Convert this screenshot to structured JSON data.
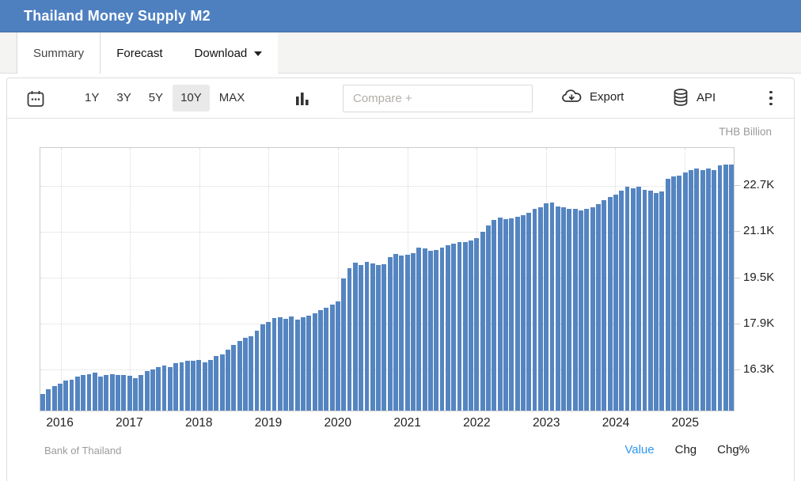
{
  "header": {
    "title": "Thailand Money Supply M2"
  },
  "tabs": [
    {
      "label": "Summary",
      "active": true
    },
    {
      "label": "Forecast",
      "active": false
    },
    {
      "label": "Download",
      "active": false,
      "caret": true
    }
  ],
  "toolbar": {
    "ranges": [
      "1Y",
      "3Y",
      "5Y",
      "10Y",
      "MAX"
    ],
    "active_range": "10Y",
    "compare_placeholder": "Compare +",
    "export_label": "Export",
    "api_label": "API",
    "icons": [
      "calendar-icon",
      "bar-chart-type-icon",
      "cloud-download-icon",
      "database-icon",
      "kebab-menu-icon"
    ]
  },
  "colors": {
    "header_bg": "#4e80c0",
    "bar": "#5585c1",
    "link_active": "#2e97f0",
    "range_active_bg": "#e9e9e9"
  },
  "footer": {
    "source": "Bank of Thailand",
    "links": [
      {
        "label": "Value",
        "active": true
      },
      {
        "label": "Chg",
        "active": false
      },
      {
        "label": "Chg%",
        "active": false
      }
    ]
  },
  "chart_data": {
    "type": "bar",
    "title": "Thailand Money Supply M2",
    "unit_label": "THB Billion",
    "source": "Bank of Thailand",
    "grid": "dotted",
    "legend": "none",
    "ylim": [
      14.85,
      24.02
    ],
    "y_ticks": [
      {
        "label": "22.7K",
        "value": 22.7
      },
      {
        "label": "21.1K",
        "value": 21.1
      },
      {
        "label": "19.5K",
        "value": 19.5
      },
      {
        "label": "17.9K",
        "value": 17.9
      },
      {
        "label": "16.3K",
        "value": 16.3
      }
    ],
    "x_year_labels": [
      "2016",
      "2017",
      "2018",
      "2019",
      "2020",
      "2021",
      "2022",
      "2023",
      "2024",
      "2025"
    ],
    "months": [
      "2015-10",
      "2015-11",
      "2015-12",
      "2016-01",
      "2016-02",
      "2016-03",
      "2016-04",
      "2016-05",
      "2016-06",
      "2016-07",
      "2016-08",
      "2016-09",
      "2016-10",
      "2016-11",
      "2016-12",
      "2017-01",
      "2017-02",
      "2017-03",
      "2017-04",
      "2017-05",
      "2017-06",
      "2017-07",
      "2017-08",
      "2017-09",
      "2017-10",
      "2017-11",
      "2017-12",
      "2018-01",
      "2018-02",
      "2018-03",
      "2018-04",
      "2018-05",
      "2018-06",
      "2018-07",
      "2018-08",
      "2018-09",
      "2018-10",
      "2018-11",
      "2018-12",
      "2019-01",
      "2019-02",
      "2019-03",
      "2019-04",
      "2019-05",
      "2019-06",
      "2019-07",
      "2019-08",
      "2019-09",
      "2019-10",
      "2019-11",
      "2019-12",
      "2020-01",
      "2020-02",
      "2020-03",
      "2020-04",
      "2020-05",
      "2020-06",
      "2020-07",
      "2020-08",
      "2020-09",
      "2020-10",
      "2020-11",
      "2020-12",
      "2021-01",
      "2021-02",
      "2021-03",
      "2021-04",
      "2021-05",
      "2021-06",
      "2021-07",
      "2021-08",
      "2021-09",
      "2021-10",
      "2021-11",
      "2021-12",
      "2022-01",
      "2022-02",
      "2022-03",
      "2022-04",
      "2022-05",
      "2022-06",
      "2022-07",
      "2022-08",
      "2022-09",
      "2022-10",
      "2022-11",
      "2022-12",
      "2023-01",
      "2023-02",
      "2023-03",
      "2023-04",
      "2023-05",
      "2023-06",
      "2023-07",
      "2023-08",
      "2023-09",
      "2023-10",
      "2023-11",
      "2023-12",
      "2024-01",
      "2024-02",
      "2024-03",
      "2024-04",
      "2024-05",
      "2024-06",
      "2024-07",
      "2024-08",
      "2024-09",
      "2024-10",
      "2024-11",
      "2024-12",
      "2025-01",
      "2025-02",
      "2025-03",
      "2025-04",
      "2025-05",
      "2025-06",
      "2025-07",
      "2025-08",
      "2025-09"
    ],
    "values": [
      15.43,
      15.6,
      15.72,
      15.79,
      15.9,
      15.93,
      16.04,
      16.08,
      16.13,
      16.17,
      16.04,
      16.1,
      16.13,
      16.08,
      16.08,
      16.06,
      15.99,
      16.1,
      16.22,
      16.3,
      16.36,
      16.43,
      16.38,
      16.5,
      16.54,
      16.59,
      16.59,
      16.63,
      16.54,
      16.61,
      16.75,
      16.82,
      16.99,
      17.15,
      17.28,
      17.4,
      17.45,
      17.63,
      17.85,
      17.95,
      18.08,
      18.1,
      18.06,
      18.13,
      18.04,
      18.1,
      18.17,
      18.25,
      18.35,
      18.45,
      18.56,
      18.65,
      19.45,
      19.82,
      20.02,
      19.94,
      20.05,
      19.99,
      19.94,
      19.96,
      20.21,
      20.32,
      20.26,
      20.29,
      20.35,
      20.54,
      20.5,
      20.43,
      20.46,
      20.55,
      20.62,
      20.68,
      20.72,
      20.72,
      20.78,
      20.88,
      21.1,
      21.3,
      21.5,
      21.6,
      21.54,
      21.55,
      21.62,
      21.66,
      21.76,
      21.9,
      21.96,
      22.09,
      22.12,
      21.99,
      21.94,
      21.9,
      21.88,
      21.85,
      21.89,
      21.96,
      22.06,
      22.21,
      22.31,
      22.4,
      22.54,
      22.66,
      22.6,
      22.68,
      22.56,
      22.54,
      22.45,
      22.49,
      22.95,
      23.02,
      23.05,
      23.16,
      23.26,
      23.29,
      23.26,
      23.31,
      23.24,
      23.41,
      23.43,
      23.43
    ]
  }
}
